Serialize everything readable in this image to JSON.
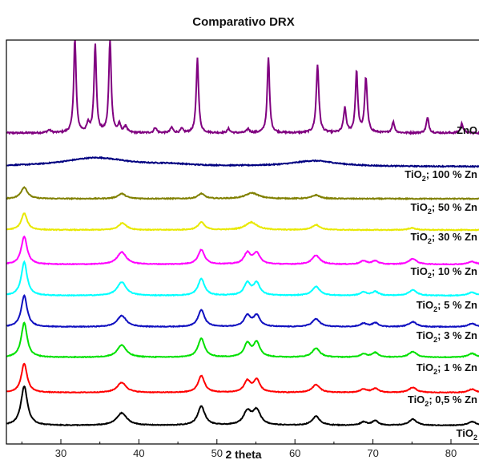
{
  "chart_data": {
    "type": "line",
    "title": "Comparativo DRX",
    "xlabel": "2 theta",
    "ylabel": "",
    "xlim": [
      23,
      84
    ],
    "xticks": [
      30,
      40,
      50,
      60,
      70,
      80
    ],
    "grid": false,
    "legend": "labels at right end of each curve (stacked traces)",
    "series": [
      {
        "name": "ZnO",
        "label_main": "ZnO",
        "label_sub": "",
        "label_rest": "",
        "color": "#800080",
        "baseline": 0.0,
        "noise": 0.12,
        "peaks": [
          [
            31.8,
            7.0,
            0.18
          ],
          [
            34.4,
            6.5,
            0.18
          ],
          [
            36.3,
            7.0,
            0.18
          ],
          [
            47.5,
            5.5,
            0.18
          ],
          [
            56.6,
            5.5,
            0.18
          ],
          [
            62.9,
            5.0,
            0.2
          ],
          [
            66.4,
            1.8,
            0.2
          ],
          [
            67.9,
            4.5,
            0.18
          ],
          [
            69.1,
            4.0,
            0.2
          ],
          [
            72.6,
            0.8,
            0.2
          ],
          [
            77.0,
            1.1,
            0.2
          ],
          [
            81.4,
            0.7,
            0.2
          ],
          [
            33.5,
            0.6,
            0.2
          ],
          [
            37.5,
            0.6,
            0.2
          ],
          [
            38.3,
            0.5,
            0.2
          ],
          [
            42.1,
            0.4,
            0.2
          ],
          [
            44.2,
            0.4,
            0.2
          ],
          [
            45.5,
            0.3,
            0.2
          ],
          [
            51.5,
            0.3,
            0.2
          ],
          [
            54.0,
            0.3,
            0.2
          ],
          [
            28.5,
            0.2,
            0.3
          ]
        ]
      },
      {
        "name": "TiO2; 100 % Zn",
        "label_main": "TiO",
        "label_sub": "2",
        "label_rest": "; 100 % Zn",
        "color": "#000080",
        "baseline": 0.0,
        "noise": 0.06,
        "peaks": [
          [
            34.5,
            0.55,
            5.0
          ],
          [
            62.5,
            0.35,
            3.5
          ],
          [
            44.0,
            0.1,
            3.0
          ]
        ]
      },
      {
        "name": "TiO2; 50 % Zn",
        "label_main": "TiO",
        "label_sub": "2",
        "label_rest": "; 50 % Zn",
        "color": "#808000",
        "baseline": 0.0,
        "noise": 0.06,
        "peaks": [
          [
            25.3,
            0.8,
            0.5
          ],
          [
            37.8,
            0.35,
            0.6
          ],
          [
            48.0,
            0.35,
            0.5
          ],
          [
            54.5,
            0.4,
            1.0
          ],
          [
            62.7,
            0.25,
            0.6
          ]
        ]
      },
      {
        "name": "TiO2; 30 % Zn",
        "label_main": "TiO",
        "label_sub": "2",
        "label_rest": "; 30 % Zn",
        "color": "#e8e800",
        "baseline": 0.0,
        "noise": 0.06,
        "peaks": [
          [
            25.3,
            1.3,
            0.45
          ],
          [
            37.9,
            0.55,
            0.6
          ],
          [
            48.0,
            0.6,
            0.5
          ],
          [
            54.4,
            0.6,
            0.9
          ],
          [
            62.7,
            0.4,
            0.6
          ],
          [
            75.0,
            0.15,
            0.6
          ]
        ]
      },
      {
        "name": "TiO2; 10 % Zn",
        "label_main": "TiO",
        "label_sub": "2",
        "label_rest": "; 10 % Zn",
        "color": "#ff00ff",
        "baseline": 0.0,
        "noise": 0.06,
        "peaks": [
          [
            25.3,
            2.5,
            0.45
          ],
          [
            37.8,
            1.1,
            0.7
          ],
          [
            48.0,
            1.3,
            0.5
          ],
          [
            53.9,
            1.0,
            0.5
          ],
          [
            55.1,
            1.0,
            0.5
          ],
          [
            62.7,
            0.8,
            0.6
          ],
          [
            68.8,
            0.3,
            0.5
          ],
          [
            70.3,
            0.3,
            0.5
          ],
          [
            75.1,
            0.5,
            0.6
          ],
          [
            82.7,
            0.25,
            0.6
          ]
        ]
      },
      {
        "name": "TiO2; 5 % Zn",
        "label_main": "TiO",
        "label_sub": "2",
        "label_rest": "; 5 % Zn",
        "color": "#00ffff",
        "baseline": 0.0,
        "noise": 0.06,
        "peaks": [
          [
            25.3,
            3.0,
            0.45
          ],
          [
            37.8,
            1.2,
            0.7
          ],
          [
            48.0,
            1.5,
            0.5
          ],
          [
            53.9,
            1.1,
            0.5
          ],
          [
            55.1,
            1.1,
            0.5
          ],
          [
            62.7,
            0.8,
            0.6
          ],
          [
            68.8,
            0.3,
            0.5
          ],
          [
            70.3,
            0.35,
            0.5
          ],
          [
            75.1,
            0.5,
            0.6
          ],
          [
            82.7,
            0.3,
            0.6
          ]
        ]
      },
      {
        "name": "TiO2; 3 % Zn",
        "label_main": "TiO",
        "label_sub": "2",
        "label_rest": "; 3 % Zn",
        "color": "#1010c0",
        "baseline": 0.0,
        "noise": 0.06,
        "peaks": [
          [
            25.3,
            2.8,
            0.45
          ],
          [
            37.8,
            1.0,
            0.7
          ],
          [
            48.0,
            1.5,
            0.5
          ],
          [
            53.9,
            1.0,
            0.5
          ],
          [
            55.1,
            1.0,
            0.5
          ],
          [
            62.7,
            0.7,
            0.6
          ],
          [
            68.8,
            0.3,
            0.5
          ],
          [
            70.3,
            0.35,
            0.5
          ],
          [
            75.1,
            0.45,
            0.6
          ],
          [
            82.7,
            0.3,
            0.6
          ]
        ]
      },
      {
        "name": "TiO2; 1 % Zn",
        "label_main": "TiO",
        "label_sub": "2",
        "label_rest": "; 1 % Zn",
        "color": "#00e000",
        "baseline": 0.0,
        "noise": 0.06,
        "peaks": [
          [
            25.3,
            3.1,
            0.45
          ],
          [
            37.8,
            1.1,
            0.7
          ],
          [
            48.0,
            1.7,
            0.5
          ],
          [
            53.9,
            1.2,
            0.5
          ],
          [
            55.1,
            1.3,
            0.5
          ],
          [
            62.7,
            0.8,
            0.6
          ],
          [
            68.8,
            0.3,
            0.5
          ],
          [
            70.3,
            0.4,
            0.5
          ],
          [
            75.1,
            0.5,
            0.6
          ],
          [
            82.7,
            0.35,
            0.6
          ]
        ]
      },
      {
        "name": "TiO2; 0,5 % Zn",
        "label_main": "TiO",
        "label_sub": "2",
        "label_rest": "; 0,5 % Zn",
        "color": "#ff0000",
        "baseline": 0.0,
        "noise": 0.06,
        "peaks": [
          [
            25.3,
            2.6,
            0.45
          ],
          [
            37.8,
            0.9,
            0.7
          ],
          [
            48.0,
            1.5,
            0.5
          ],
          [
            53.9,
            1.0,
            0.5
          ],
          [
            55.1,
            1.1,
            0.5
          ],
          [
            62.7,
            0.7,
            0.6
          ],
          [
            68.8,
            0.3,
            0.5
          ],
          [
            70.3,
            0.35,
            0.5
          ],
          [
            75.1,
            0.45,
            0.6
          ],
          [
            82.7,
            0.3,
            0.6
          ]
        ]
      },
      {
        "name": "TiO2",
        "label_main": "TiO",
        "label_sub": "2",
        "label_rest": "",
        "color": "#000000",
        "baseline": 0.0,
        "noise": 0.06,
        "peaks": [
          [
            25.3,
            3.5,
            0.5
          ],
          [
            37.8,
            1.1,
            0.8
          ],
          [
            48.0,
            1.7,
            0.55
          ],
          [
            53.9,
            1.2,
            0.6
          ],
          [
            55.1,
            1.3,
            0.6
          ],
          [
            62.7,
            0.8,
            0.6
          ],
          [
            68.8,
            0.3,
            0.5
          ],
          [
            70.3,
            0.4,
            0.5
          ],
          [
            75.1,
            0.55,
            0.6
          ],
          [
            82.7,
            0.35,
            0.6
          ]
        ]
      }
    ]
  }
}
